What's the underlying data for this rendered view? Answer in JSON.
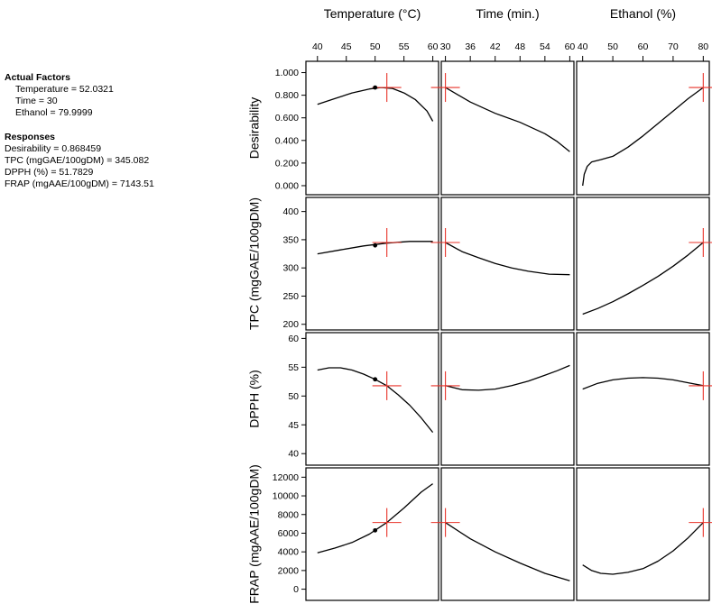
{
  "colors": {
    "axis": "#000000",
    "curve": "#000000",
    "crosshair": "#e8332a"
  },
  "actual_factors": {
    "heading": "Actual Factors",
    "lines": [
      "Temperature = 52.0321",
      "Time = 30",
      "Ethanol = 79.9999"
    ]
  },
  "responses": {
    "heading": "Responses",
    "lines": [
      "Desirability = 0.868459",
      "TPC (mgGAE/100gDM) = 345.082",
      "DPPH (%) = 51.7829",
      "FRAP (mgAAE/100gDM) = 7143.51"
    ]
  },
  "chart_data": {
    "type": "line",
    "title": "",
    "factors": [
      {
        "name": "Temperature (°C)",
        "range": [
          38,
          61
        ],
        "ticks": [
          40,
          45,
          50,
          55,
          60
        ],
        "tick_labels": [
          "40",
          "45",
          "50",
          "55",
          "60"
        ],
        "optimum": 52.0321
      },
      {
        "name": "Time (min.)",
        "range": [
          29,
          61
        ],
        "ticks": [
          30,
          36,
          42,
          48,
          54,
          60
        ],
        "tick_labels": [
          "30",
          "36",
          "42",
          "48",
          "54",
          "60"
        ],
        "optimum": 30
      },
      {
        "name": "Ethanol (%)",
        "range": [
          38,
          82
        ],
        "ticks": [
          40,
          50,
          60,
          70,
          80
        ],
        "tick_labels": [
          "40",
          "50",
          "60",
          "70",
          "80"
        ],
        "optimum": 79.9999
      }
    ],
    "responses": [
      {
        "name": "Desirability",
        "range": [
          -0.08,
          1.1
        ],
        "ticks": [
          0,
          0.2,
          0.4,
          0.6,
          0.8,
          1.0
        ],
        "tick_labels": [
          "0.000",
          "0.200",
          "0.400",
          "0.600",
          "0.800",
          "1.000"
        ],
        "optimum_value": 0.868459,
        "curves": [
          [
            [
              40,
              0.72
            ],
            [
              43,
              0.77
            ],
            [
              46,
              0.82
            ],
            [
              49,
              0.855
            ],
            [
              51,
              0.868
            ],
            [
              53,
              0.86
            ],
            [
              55,
              0.82
            ],
            [
              57,
              0.76
            ],
            [
              59,
              0.66
            ],
            [
              60,
              0.57
            ]
          ],
          [
            [
              30,
              0.868
            ],
            [
              36,
              0.74
            ],
            [
              42,
              0.64
            ],
            [
              48,
              0.56
            ],
            [
              54,
              0.46
            ],
            [
              57,
              0.39
            ],
            [
              60,
              0.3
            ]
          ],
          [
            [
              40,
              0.0
            ],
            [
              40.5,
              0.1
            ],
            [
              41.5,
              0.17
            ],
            [
              43,
              0.21
            ],
            [
              46,
              0.23
            ],
            [
              50,
              0.26
            ],
            [
              55,
              0.34
            ],
            [
              60,
              0.44
            ],
            [
              65,
              0.55
            ],
            [
              70,
              0.66
            ],
            [
              75,
              0.77
            ],
            [
              80,
              0.868
            ]
          ]
        ],
        "design_point": [
          50,
          0.868
        ]
      },
      {
        "name": "TPC (mgGAE/100gDM)",
        "range": [
          190,
          425
        ],
        "ticks": [
          200,
          250,
          300,
          350,
          400
        ],
        "tick_labels": [
          "200",
          "250",
          "300",
          "350",
          "400"
        ],
        "optimum_value": 345.082,
        "curves": [
          [
            [
              40,
              325
            ],
            [
              44,
              332
            ],
            [
              48,
              339
            ],
            [
              52,
              344
            ],
            [
              56,
              347
            ],
            [
              60,
              347
            ]
          ],
          [
            [
              30,
              345
            ],
            [
              34,
              329
            ],
            [
              38,
              318
            ],
            [
              42,
              308
            ],
            [
              46,
              300
            ],
            [
              50,
              294
            ],
            [
              55,
              289
            ],
            [
              60,
              288
            ]
          ],
          [
            [
              40,
              218
            ],
            [
              45,
              228
            ],
            [
              50,
              240
            ],
            [
              55,
              254
            ],
            [
              60,
              269
            ],
            [
              65,
              285
            ],
            [
              70,
              303
            ],
            [
              75,
              323
            ],
            [
              80,
              345
            ]
          ]
        ],
        "design_point": [
          50,
          340
        ]
      },
      {
        "name": "DPPH (%)",
        "range": [
          38,
          61
        ],
        "ticks": [
          40,
          45,
          50,
          55,
          60
        ],
        "tick_labels": [
          "40",
          "45",
          "50",
          "55",
          "60"
        ],
        "optimum_value": 51.7829,
        "curves": [
          [
            [
              40,
              54.5
            ],
            [
              42,
              54.9
            ],
            [
              44,
              54.9
            ],
            [
              46,
              54.5
            ],
            [
              48,
              53.8
            ],
            [
              50,
              52.9
            ],
            [
              52,
              51.8
            ],
            [
              54,
              50.2
            ],
            [
              56,
              48.4
            ],
            [
              58,
              46.2
            ],
            [
              60,
              43.7
            ]
          ],
          [
            [
              30,
              51.8
            ],
            [
              34,
              51.1
            ],
            [
              38,
              51.0
            ],
            [
              42,
              51.2
            ],
            [
              46,
              51.8
            ],
            [
              50,
              52.6
            ],
            [
              54,
              53.6
            ],
            [
              57,
              54.4
            ],
            [
              60,
              55.3
            ]
          ],
          [
            [
              40,
              51.2
            ],
            [
              45,
              52.2
            ],
            [
              50,
              52.8
            ],
            [
              55,
              53.1
            ],
            [
              60,
              53.2
            ],
            [
              65,
              53.1
            ],
            [
              70,
              52.8
            ],
            [
              75,
              52.3
            ],
            [
              80,
              51.8
            ]
          ]
        ],
        "design_point": [
          50,
          52.9
        ]
      },
      {
        "name": "FRAP (mgAAE/100gDM)",
        "range": [
          -1200,
          13000
        ],
        "ticks": [
          0,
          2000,
          4000,
          6000,
          8000,
          10000,
          12000
        ],
        "tick_labels": [
          "0",
          "2000",
          "4000",
          "6000",
          "8000",
          "10000",
          "12000"
        ],
        "optimum_value": 7143.51,
        "curves": [
          [
            [
              40,
              3900
            ],
            [
              43,
              4400
            ],
            [
              46,
              5000
            ],
            [
              49,
              5900
            ],
            [
              52,
              7140
            ],
            [
              55,
              8700
            ],
            [
              58,
              10400
            ],
            [
              60,
              11300
            ]
          ],
          [
            [
              30,
              7140
            ],
            [
              36,
              5400
            ],
            [
              42,
              4000
            ],
            [
              48,
              2800
            ],
            [
              54,
              1700
            ],
            [
              60,
              900
            ]
          ],
          [
            [
              40,
              2600
            ],
            [
              43,
              2000
            ],
            [
              46,
              1700
            ],
            [
              50,
              1600
            ],
            [
              55,
              1800
            ],
            [
              60,
              2200
            ],
            [
              65,
              3000
            ],
            [
              70,
              4100
            ],
            [
              75,
              5500
            ],
            [
              80,
              7140
            ]
          ]
        ],
        "design_point": [
          50,
          6300
        ]
      }
    ]
  }
}
